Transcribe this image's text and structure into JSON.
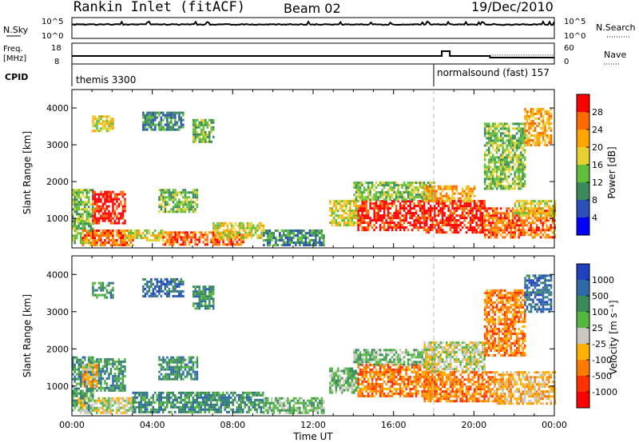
{
  "header": {
    "station": "Rankin Inlet (fitACF)",
    "beam": "Beam 02",
    "date": "19/Dec/2010"
  },
  "summary_panels": {
    "nsky": {
      "left_label": "N.Sky",
      "left_ticks": [
        "10^5",
        "10^0"
      ],
      "right_ticks": [
        "10^5",
        "10^0"
      ],
      "right_label": "N.Search"
    },
    "freq": {
      "left_label_line1": "Freq.",
      "left_label_line2": "[MHz]",
      "left_ticks": [
        "18",
        "8"
      ],
      "right_ticks": [
        "60",
        "0"
      ],
      "right_label": "Nave"
    },
    "cpid": {
      "label": "CPID",
      "entries": [
        {
          "text": "themis 3300",
          "start_hour": 0
        },
        {
          "text": "normalsound (fast) 157",
          "start_hour": 18
        }
      ]
    }
  },
  "chart_data": [
    {
      "type": "heatmap",
      "name": "power",
      "ylabel": "Slant Range [km]",
      "xlabel": "",
      "ylim": [
        200,
        4500
      ],
      "xlim": [
        0,
        24
      ],
      "y_ticks": [
        "1000",
        "2000",
        "3000",
        "4000"
      ],
      "colorbar": {
        "label": "Power [dB]",
        "ticks": [
          "4",
          "8",
          "12",
          "16",
          "20",
          "24",
          "28"
        ],
        "colors": [
          "#0000ff",
          "#2c50b8",
          "#3a8a5c",
          "#5fbf3a",
          "#e8d030",
          "#ffa500",
          "#ff6a00",
          "#ff0000"
        ]
      },
      "cpid_change_hour": 18,
      "regions": [
        {
          "t0": 0.0,
          "t1": 1.0,
          "r0": 350,
          "r1": 1800,
          "level": 3
        },
        {
          "t0": 1.0,
          "t1": 2.6,
          "r0": 900,
          "r1": 1750,
          "level": 7
        },
        {
          "t0": 0.5,
          "t1": 3.0,
          "r0": 300,
          "r1": 700,
          "level": 6
        },
        {
          "t0": 2.5,
          "t1": 4.5,
          "r0": 400,
          "r1": 700,
          "level": 4
        },
        {
          "t0": 4.5,
          "t1": 8.5,
          "r0": 300,
          "r1": 650,
          "level": 6
        },
        {
          "t0": 7.0,
          "t1": 9.5,
          "r0": 450,
          "r1": 900,
          "level": 4
        },
        {
          "t0": 9.5,
          "t1": 12.5,
          "r0": 250,
          "r1": 700,
          "level": 2
        },
        {
          "t0": 1.0,
          "t1": 2.0,
          "r0": 3400,
          "r1": 3800,
          "level": 4
        },
        {
          "t0": 3.5,
          "t1": 5.5,
          "r0": 3400,
          "r1": 3900,
          "level": 2
        },
        {
          "t0": 6.0,
          "t1": 7.0,
          "r0": 3100,
          "r1": 3700,
          "level": 3
        },
        {
          "t0": 4.3,
          "t1": 6.2,
          "r0": 1200,
          "r1": 1800,
          "level": 3
        },
        {
          "t0": 12.8,
          "t1": 14.2,
          "r0": 800,
          "r1": 1500,
          "level": 4
        },
        {
          "t0": 14.2,
          "t1": 17.5,
          "r0": 700,
          "r1": 1500,
          "level": 7
        },
        {
          "t0": 14.0,
          "t1": 18.0,
          "r0": 1500,
          "r1": 2000,
          "level": 3
        },
        {
          "t0": 17.5,
          "t1": 20.5,
          "r0": 600,
          "r1": 1500,
          "level": 7
        },
        {
          "t0": 17.5,
          "t1": 20.0,
          "r0": 1500,
          "r1": 1900,
          "level": 5
        },
        {
          "t0": 20.5,
          "t1": 24.0,
          "r0": 500,
          "r1": 1300,
          "level": 6
        },
        {
          "t0": 22.0,
          "t1": 24.0,
          "r0": 1100,
          "r1": 1500,
          "level": 4
        },
        {
          "t0": 20.5,
          "t1": 22.5,
          "r0": 1800,
          "r1": 3600,
          "level": 3
        },
        {
          "t0": 22.5,
          "t1": 23.8,
          "r0": 3000,
          "r1": 4000,
          "level": 5
        }
      ]
    },
    {
      "type": "heatmap",
      "name": "velocity",
      "ylabel": "Slant Range [km]",
      "xlabel": "Time UT",
      "ylim": [
        200,
        4500
      ],
      "xlim": [
        0,
        24
      ],
      "y_ticks": [
        "1000",
        "2000",
        "3000",
        "4000"
      ],
      "x_ticks": [
        "00:00",
        "04:00",
        "08:00",
        "12:00",
        "16:00",
        "20:00",
        "00:00"
      ],
      "colorbar": {
        "label": "Velocity [m s⁻¹]",
        "ticks": [
          "1000",
          "500",
          "100",
          "25",
          "-25",
          "-100",
          "-500",
          "-1000"
        ],
        "colors": [
          "#2040c0",
          "#2e6aa8",
          "#3a8a5c",
          "#55b840",
          "#c8c8c0",
          "#ffb000",
          "#ff7a00",
          "#ff3000",
          "#ff0000"
        ]
      },
      "cpid_change_hour": 18,
      "regions": [
        {
          "t0": 0.0,
          "t1": 1.0,
          "r0": 350,
          "r1": 1800,
          "level": 2
        },
        {
          "t0": 1.0,
          "t1": 2.6,
          "r0": 900,
          "r1": 1750,
          "level": 2
        },
        {
          "t0": 0.5,
          "t1": 1.2,
          "r0": 1000,
          "r1": 1600,
          "level": 5
        },
        {
          "t0": 0.3,
          "t1": 3.0,
          "r0": 250,
          "r1": 700,
          "level": 4
        },
        {
          "t0": 3.0,
          "t1": 9.5,
          "r0": 300,
          "r1": 850,
          "level": 2
        },
        {
          "t0": 9.5,
          "t1": 12.5,
          "r0": 250,
          "r1": 700,
          "level": 3
        },
        {
          "t0": 1.0,
          "t1": 2.0,
          "r0": 3400,
          "r1": 3800,
          "level": 2
        },
        {
          "t0": 3.5,
          "t1": 5.5,
          "r0": 3400,
          "r1": 3900,
          "level": 1
        },
        {
          "t0": 6.0,
          "t1": 7.0,
          "r0": 3100,
          "r1": 3700,
          "level": 2
        },
        {
          "t0": 4.3,
          "t1": 6.2,
          "r0": 1200,
          "r1": 1800,
          "level": 2
        },
        {
          "t0": 12.8,
          "t1": 14.2,
          "r0": 800,
          "r1": 1500,
          "level": 3
        },
        {
          "t0": 14.2,
          "t1": 18.0,
          "r0": 700,
          "r1": 1600,
          "level": 6
        },
        {
          "t0": 14.0,
          "t1": 18.0,
          "r0": 1600,
          "r1": 2000,
          "level": 3
        },
        {
          "t0": 17.5,
          "t1": 20.5,
          "r0": 1400,
          "r1": 2200,
          "level": 4
        },
        {
          "t0": 17.5,
          "t1": 21.0,
          "r0": 600,
          "r1": 1400,
          "level": 6
        },
        {
          "t0": 21.0,
          "t1": 24.0,
          "r0": 500,
          "r1": 1400,
          "level": 5
        },
        {
          "t0": 20.5,
          "t1": 22.5,
          "r0": 1800,
          "r1": 3600,
          "level": 6
        },
        {
          "t0": 22.5,
          "t1": 23.8,
          "r0": 3000,
          "r1": 4000,
          "level": 1
        }
      ]
    }
  ]
}
